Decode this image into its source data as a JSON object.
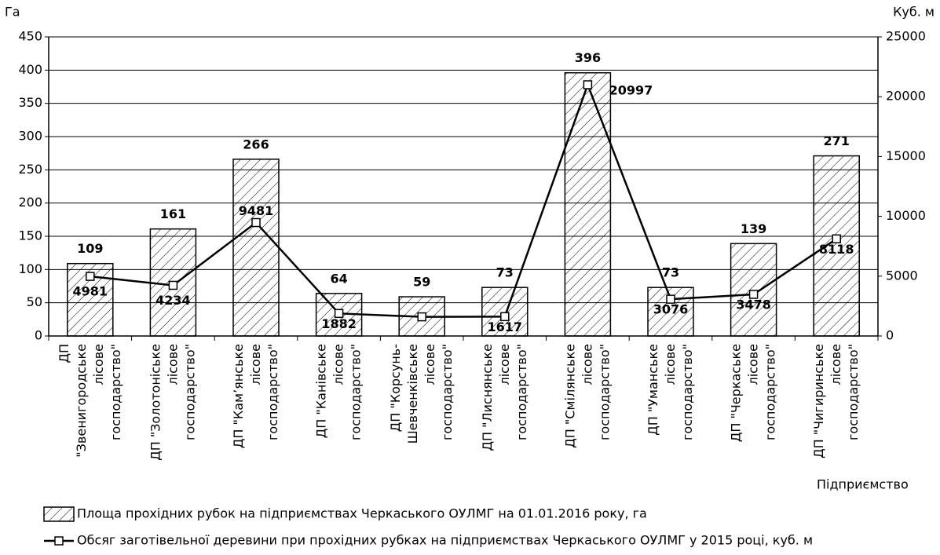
{
  "chart_data": {
    "type": "bar",
    "y_label": "Га",
    "y2_label": "Куб. м",
    "x_label": "Підприємство",
    "categories": [
      "ДП\n\"Звенигородське\nлісове\nгосподарство\"",
      "ДП \"Золотоніське\nлісове\nгосподарство\"",
      "ДП \"Кам’янське\nлісове\nгосподарство\"",
      "ДП \"Канівське\nлісове\nгосподарство\"",
      "ДП \"Корсунь-\nШевченківське\nлісове\nгосподарство\"",
      "ДП \"Лиснянське\nлісове\nгосподарство\"",
      "ДП \"Смілянське\nлісове\nгосподарство\"",
      "ДП \"Уманське\nлісове\nгосподарство\"",
      "ДП \"Черкаське\nлісове\nгосподарство\"",
      "ДП \"Чигиринське\nлісове\nгосподарство\""
    ],
    "series": [
      {
        "name": "Площа прохідних рубок на підприємствах Черкаського ОУЛМГ на 01.01.2016 року, га",
        "type": "bar",
        "color": "#000000",
        "values": [
          109,
          161,
          266,
          64,
          59,
          73,
          396,
          73,
          139,
          271
        ]
      },
      {
        "name": "Обсяг заготівельної деревини при прохідних рубках на підприємствах Черкаського ОУЛМГ у 2015 році, куб. м",
        "type": "line",
        "axis": "y2",
        "color": "#000000",
        "values": [
          4981,
          4234,
          9481,
          1882,
          1600,
          1617,
          20997,
          3076,
          3478,
          8118
        ],
        "value_labels": [
          "4981",
          "4234",
          "9481",
          "1882",
          null,
          "1617",
          "20997",
          "3076",
          "3478",
          "8118"
        ]
      }
    ],
    "ylim": [
      0,
      450
    ],
    "yticks": [
      0,
      50,
      100,
      150,
      200,
      250,
      300,
      350,
      400,
      450
    ],
    "y2lim": [
      0,
      25000
    ],
    "y2ticks": [
      0,
      5000,
      10000,
      15000,
      20000,
      25000
    ],
    "grid": true
  }
}
